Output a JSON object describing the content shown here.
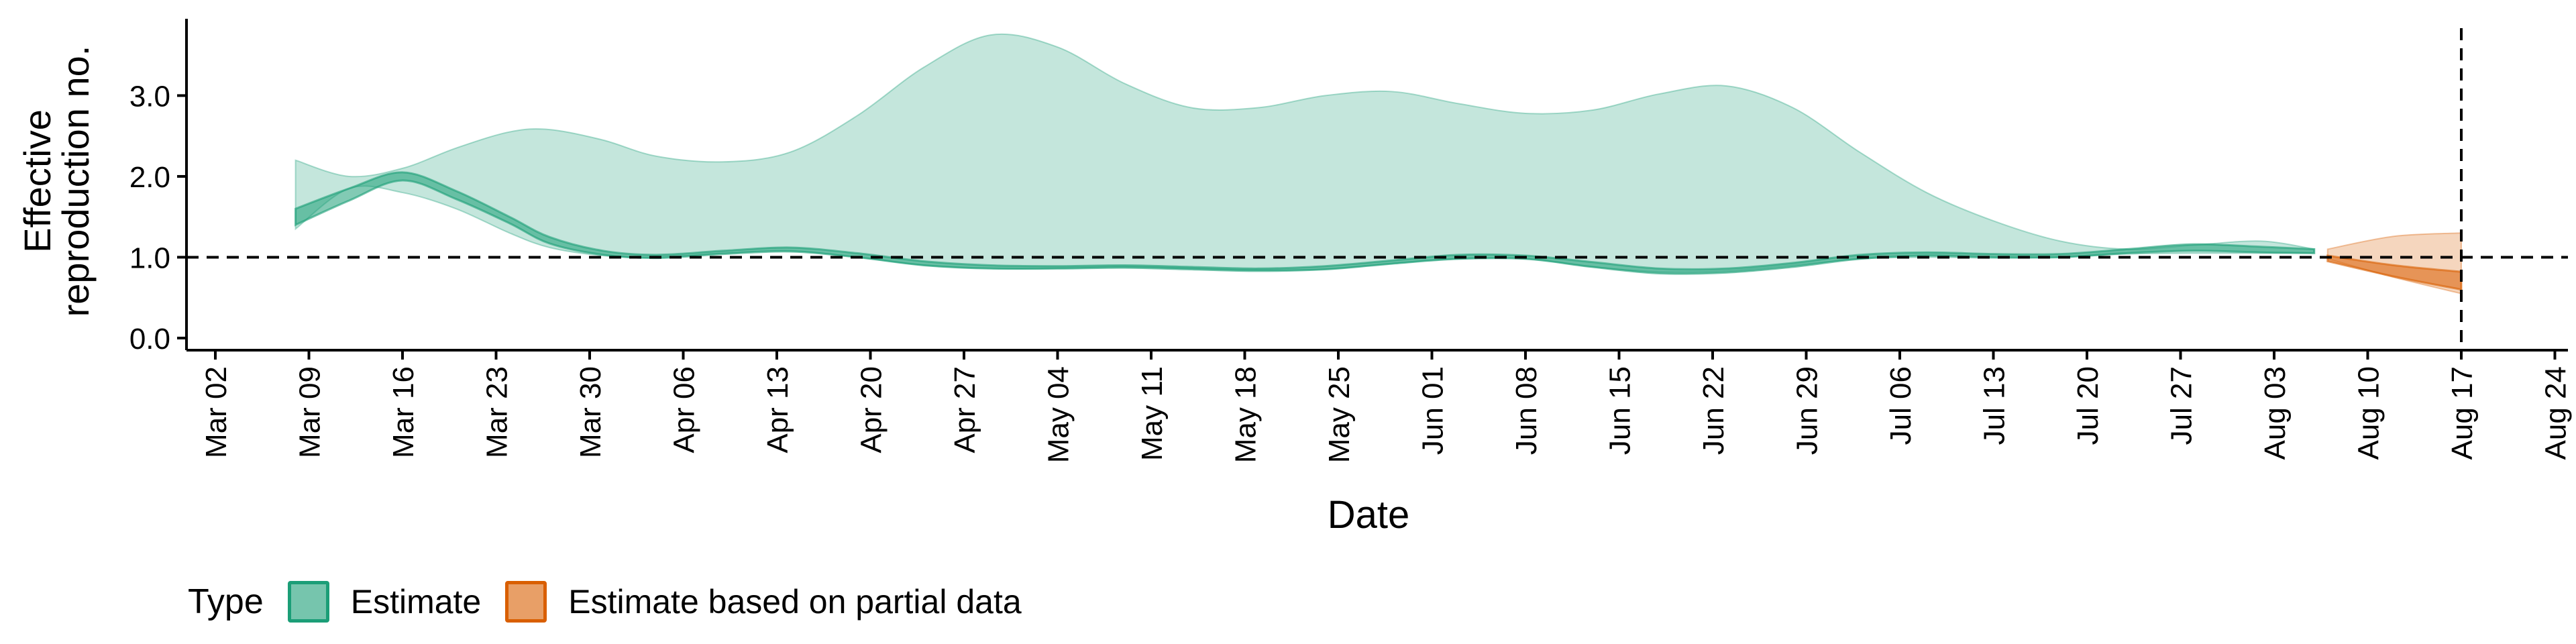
{
  "chart_data": {
    "type": "area",
    "ylabel_lines": [
      "Effective",
      "reproduction no."
    ],
    "xlabel": "Date",
    "ylim": [
      -0.15,
      3.95
    ],
    "y_ticks": [
      "0.0",
      "1.0",
      "2.0",
      "3.0"
    ],
    "x_ticks": [
      "Mar 02",
      "Mar 09",
      "Mar 16",
      "Mar 23",
      "Mar 30",
      "Apr 06",
      "Apr 13",
      "Apr 20",
      "Apr 27",
      "May 04",
      "May 11",
      "May 18",
      "May 25",
      "Jun 01",
      "Jun 08",
      "Jun 15",
      "Jun 22",
      "Jun 29",
      "Jul 06",
      "Jul 13",
      "Jul 20",
      "Jul 27",
      "Aug 03",
      "Aug 10",
      "Aug 17",
      "Aug 24"
    ],
    "reference_lines": {
      "y": 1.0,
      "x": "Aug 17"
    },
    "legend": {
      "title": "Type",
      "position": "bottom-left"
    },
    "series": [
      {
        "name": "Estimate",
        "color": "#1b9e77",
        "x": [
          "Mar 08",
          "Mar 12",
          "Mar 16",
          "Mar 20",
          "Mar 24",
          "Mar 27",
          "Mar 31",
          "Apr 04",
          "Apr 09",
          "Apr 14",
          "Apr 19",
          "Apr 24",
          "Apr 29",
          "May 04",
          "May 09",
          "May 14",
          "May 19",
          "May 24",
          "May 29",
          "Jun 03",
          "Jun 08",
          "Jun 13",
          "Jun 18",
          "Jun 23",
          "Jun 28",
          "Jul 03",
          "Jul 08",
          "Jul 13",
          "Jul 18",
          "Jul 23",
          "Jul 28",
          "Aug 02",
          "Aug 06"
        ],
        "outer_upper": [
          2.2,
          2.0,
          2.1,
          2.35,
          2.55,
          2.58,
          2.45,
          2.25,
          2.18,
          2.3,
          2.75,
          3.35,
          3.75,
          3.6,
          3.15,
          2.85,
          2.85,
          3.0,
          3.05,
          2.9,
          2.78,
          2.82,
          3.02,
          3.12,
          2.85,
          2.3,
          1.8,
          1.45,
          1.2,
          1.1,
          1.15,
          1.2,
          1.1
        ],
        "outer_lower": [
          1.35,
          1.85,
          1.8,
          1.6,
          1.3,
          1.12,
          1.02,
          1.0,
          1.05,
          1.08,
          1.0,
          0.9,
          0.86,
          0.86,
          0.88,
          0.86,
          0.84,
          0.85,
          0.92,
          0.98,
          0.98,
          0.88,
          0.82,
          0.83,
          0.9,
          0.98,
          1.0,
          0.99,
          1.0,
          1.04,
          1.05,
          1.05,
          1.05
        ],
        "inner_upper": [
          1.6,
          1.85,
          2.05,
          1.82,
          1.5,
          1.25,
          1.08,
          1.03,
          1.08,
          1.12,
          1.05,
          0.95,
          0.9,
          0.89,
          0.9,
          0.88,
          0.86,
          0.89,
          0.96,
          1.03,
          1.02,
          0.94,
          0.86,
          0.86,
          0.93,
          1.03,
          1.06,
          1.04,
          1.04,
          1.1,
          1.16,
          1.13,
          1.1
        ],
        "inner_lower": [
          1.4,
          1.7,
          1.95,
          1.72,
          1.42,
          1.17,
          1.03,
          0.99,
          1.04,
          1.07,
          1.0,
          0.9,
          0.86,
          0.86,
          0.87,
          0.85,
          0.83,
          0.85,
          0.92,
          0.98,
          0.98,
          0.88,
          0.8,
          0.81,
          0.88,
          0.98,
          1.02,
          1.0,
          1.0,
          1.05,
          1.08,
          1.06,
          1.05
        ]
      },
      {
        "name": "Estimate based on partial data",
        "color": "#d95f02",
        "x": [
          "Aug 07",
          "Aug 12",
          "Aug 17"
        ],
        "outer_upper": [
          1.1,
          1.26,
          1.3
        ],
        "outer_lower": [
          0.98,
          0.75,
          0.55
        ],
        "inner_upper": [
          1.02,
          0.9,
          0.82
        ],
        "inner_lower": [
          0.95,
          0.76,
          0.6
        ]
      }
    ]
  }
}
